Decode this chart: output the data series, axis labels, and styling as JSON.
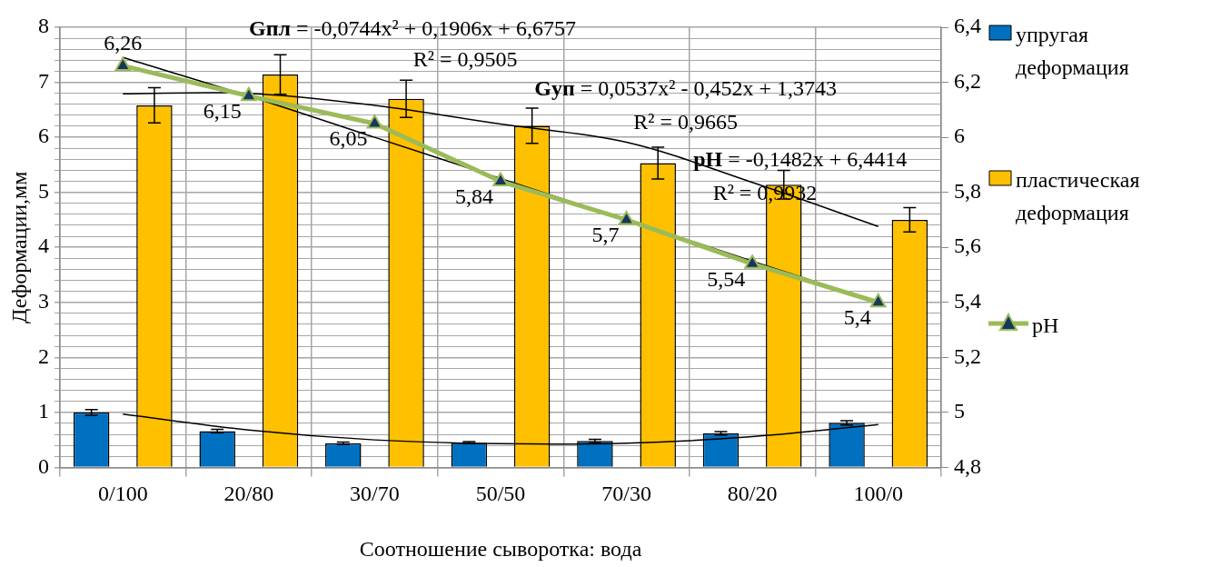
{
  "chart_data": {
    "type": "bar",
    "xlabel": "Соотношение сыворотка: вода",
    "ylabel": "Деформации,мм",
    "categories": [
      "0/100",
      "20/80",
      "30/70",
      "50/50",
      "70/30",
      "80/20",
      "100/0"
    ],
    "series": [
      {
        "name": "упругая деформация",
        "type": "bar",
        "color": "#0070c0",
        "values": [
          1.0,
          0.66,
          0.44,
          0.45,
          0.48,
          0.62,
          0.81
        ],
        "errors": [
          0.05,
          0.03,
          0.02,
          0.02,
          0.03,
          0.03,
          0.04
        ]
      },
      {
        "name": "пластическая деформация",
        "type": "bar",
        "color": "#ffc000",
        "values": [
          6.58,
          7.14,
          6.7,
          6.21,
          5.53,
          5.14,
          4.5
        ],
        "errors": [
          0.32,
          0.36,
          0.34,
          0.32,
          0.29,
          0.26,
          0.22
        ]
      },
      {
        "type": "line",
        "color": "#000000",
        "marker": "none",
        "values": [
          6.79,
          6.8,
          6.58,
          6.24,
          5.91,
          5.18,
          4.38
        ]
      },
      {
        "type": "line",
        "color": "#000000",
        "marker": "none",
        "values": [
          0.97,
          0.68,
          0.5,
          0.43,
          0.44,
          0.56,
          0.78
        ]
      },
      {
        "type": "line",
        "axis": "y2",
        "color": "#000000",
        "marker": "none",
        "values": [
          6.29,
          6.15,
          6.0,
          5.85,
          5.7,
          5.55,
          5.4
        ]
      },
      {
        "name": "pH",
        "type": "line",
        "axis": "y2",
        "color": "#9bbb59",
        "marker": "triangle",
        "values": [
          6.26,
          6.15,
          6.05,
          5.84,
          5.7,
          5.54,
          5.4
        ],
        "value_labels": [
          "6,26",
          "6,15",
          "6,05",
          "5,84",
          "5,7",
          "5,54",
          "5,4"
        ]
      }
    ],
    "ylim": [
      0,
      8
    ],
    "yticks": [
      0,
      {
        "value": 0.2,
        "label": null
      },
      {
        "value": 0.4,
        "label": null
      },
      {
        "value": 0.6,
        "label": null
      },
      {
        "value": 0.8,
        "label": null
      },
      1,
      {
        "value": 1.2,
        "label": null
      },
      {
        "value": 1.4,
        "label": null
      },
      {
        "value": 1.6,
        "label": null
      },
      {
        "value": 1.8,
        "label": null
      },
      2,
      {
        "value": 2.2,
        "label": null
      },
      {
        "value": 2.4,
        "label": null
      },
      {
        "value": 2.6,
        "label": null
      },
      {
        "value": 2.8,
        "label": null
      },
      3,
      {
        "value": 3.2,
        "label": null
      },
      {
        "value": 3.4,
        "label": null
      },
      {
        "value": 3.6,
        "label": null
      },
      {
        "value": 3.8,
        "label": null
      },
      4,
      {
        "value": 4.2,
        "label": null
      },
      {
        "value": 4.4,
        "label": null
      },
      {
        "value": 4.6,
        "label": null
      },
      {
        "value": 4.8,
        "label": null
      },
      5,
      {
        "value": 5.2,
        "label": null
      },
      {
        "value": 5.4,
        "label": null
      },
      {
        "value": 5.6,
        "label": null
      },
      {
        "value": 5.8,
        "label": null
      },
      6,
      {
        "value": 6.2,
        "label": null
      },
      {
        "value": 6.4,
        "label": null
      },
      {
        "value": 6.6,
        "label": null
      },
      {
        "value": 6.8,
        "label": null
      },
      7,
      {
        "value": 7.2,
        "label": null
      },
      {
        "value": 7.4,
        "label": null
      },
      {
        "value": 7.6,
        "label": null
      },
      {
        "value": 7.8,
        "label": null
      },
      8
    ],
    "y2lim": [
      4.8,
      6.4
    ],
    "y2ticks": [
      {
        "value": 4.8,
        "label": "4,8"
      },
      5,
      {
        "value": 5.2,
        "label": "5,2"
      },
      {
        "value": 5.4,
        "label": "5,4"
      },
      {
        "value": 5.6,
        "label": "5,6"
      },
      {
        "value": 5.8,
        "label": "5,8"
      },
      6,
      {
        "value": 6.2,
        "label": "6,2"
      },
      {
        "value": 6.4,
        "label": "6,4"
      }
    ],
    "grid": true,
    "legend": "right",
    "annotations": [
      "Gпл = -0,0744x² + 0,1906x + 6,6757",
      "R² = 0,9505",
      "Gуп = 0,0537x² - 0,452x + 1,3743",
      "R² = 0,9665",
      "pH = -0,1482x + 6,4414",
      "R² = 0,9932"
    ]
  }
}
